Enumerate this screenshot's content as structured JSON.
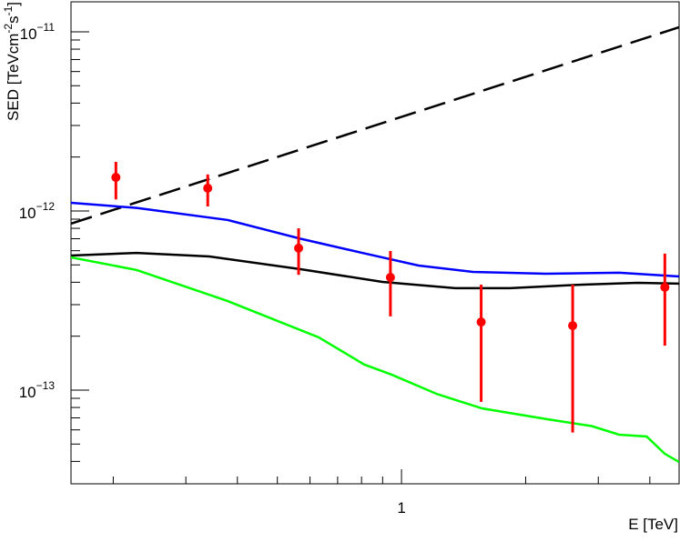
{
  "chart_data": {
    "type": "line",
    "log_x": true,
    "log_y": true,
    "xlabel": "E [TeV]",
    "ylabel_parts": [
      {
        "text": "SED [TeVcm"
      },
      {
        "text": "-2",
        "sup": true
      },
      {
        "text": "s"
      },
      {
        "text": "-1",
        "sup": true
      },
      {
        "text": "]"
      }
    ],
    "xlim": [
      0.158,
      4.71
    ],
    "ylim": [
      3e-14,
      1.47e-11
    ],
    "xticks": [
      1
    ],
    "xminor": [
      0.2,
      0.3,
      0.4,
      0.5,
      0.6,
      0.7,
      0.8,
      0.9,
      2,
      3,
      4
    ],
    "yticks": [
      {
        "value": 1e-13,
        "label": "10",
        "sup": "−13"
      },
      {
        "value": 1e-12,
        "label": "10",
        "sup": "−12"
      },
      {
        "value": 1e-11,
        "label": "10",
        "sup": "−11"
      }
    ],
    "yminor": [
      4e-14,
      5e-14,
      6e-14,
      7e-14,
      8e-14,
      9e-14,
      2e-13,
      3e-13,
      4e-13,
      5e-13,
      6e-13,
      7e-13,
      8e-13,
      9e-13,
      2e-12,
      3e-12,
      4e-12,
      5e-12,
      6e-12,
      7e-12,
      8e-12,
      9e-12
    ],
    "series": [
      {
        "type": "line",
        "color": "#000000",
        "dashed": true,
        "x": [
          0.158,
          4.71
        ],
        "values": [
          8.5e-13,
          1.06e-11
        ]
      },
      {
        "type": "line",
        "color": "#0000ff",
        "dashed": false,
        "x": [
          0.158,
          0.228,
          0.379,
          0.569,
          0.812,
          1.1,
          1.49,
          2.24,
          3.37,
          4.71
        ],
        "values": [
          1.11e-12,
          1.04e-12,
          8.9e-13,
          7e-13,
          5.8e-13,
          4.96e-13,
          4.57e-13,
          4.46e-13,
          4.52e-13,
          4.31e-13
        ]
      },
      {
        "type": "line",
        "color": "#000000",
        "dashed": false,
        "x": [
          0.158,
          0.228,
          0.342,
          0.569,
          0.899,
          1.35,
          1.83,
          2.75,
          3.73,
          4.71
        ],
        "values": [
          5.64e-13,
          5.83e-13,
          5.57e-13,
          4.73e-13,
          4.02e-13,
          3.71e-13,
          3.71e-13,
          3.88e-13,
          3.97e-13,
          3.93e-13
        ]
      },
      {
        "type": "line",
        "color": "#00ff00",
        "dashed": false,
        "x": [
          0.158,
          0.228,
          0.379,
          0.63,
          0.812,
          0.946,
          1.22,
          1.57,
          2.24,
          2.89,
          3.37,
          3.93,
          4.35,
          4.71
        ],
        "values": [
          5.51e-13,
          4.68e-13,
          3.14e-13,
          1.97e-13,
          1.39e-13,
          1.22e-13,
          9.5e-14,
          7.9e-14,
          6.9e-14,
          6.3e-14,
          5.64e-14,
          5.51e-14,
          4.41e-14,
          3.97e-14
        ]
      },
      {
        "type": "errorbar",
        "color": "#ff0000",
        "x": [
          0.203,
          0.339,
          0.563,
          0.94,
          1.56,
          2.6,
          4.35
        ],
        "values": [
          1.54e-12,
          1.34e-12,
          6.2e-13,
          4.26e-13,
          2.4e-13,
          2.29e-13,
          3.75e-13
        ],
        "errors_minus": [
          3.8e-13,
          2.8e-13,
          1.8e-13,
          1.68e-13,
          1.54e-13,
          1.71e-13,
          1.98e-13
        ],
        "errors_plus": [
          3.4e-13,
          2.6e-13,
          1.8e-13,
          1.72e-13,
          1.48e-13,
          1.59e-13,
          2.03e-13
        ]
      }
    ]
  }
}
